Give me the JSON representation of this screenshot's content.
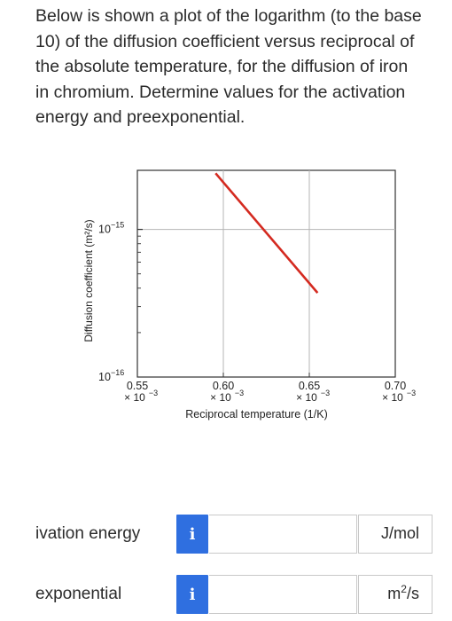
{
  "question": {
    "text": "Below is shown a plot of the logarithm (to the base 10) of the diffusion coefficient versus reciprocal of the absolute temperature, for the diffusion of iron in chromium. Determine values for the activation energy and preexponential."
  },
  "chart_data": {
    "type": "line",
    "xlabel": "Reciprocal temperature (1/K)",
    "ylabel": "Diffusion coefficient (m²/s)",
    "xlim": [
      0.55,
      0.7
    ],
    "ylim_log10": [
      -16,
      -14.6
    ],
    "y_scale": "log",
    "grid": true,
    "xticks": [
      {
        "value": 0.55,
        "label": "0.55",
        "mult": "× 10",
        "exp": "−3"
      },
      {
        "value": 0.6,
        "label": "0.60",
        "mult": "× 10",
        "exp": "−3"
      },
      {
        "value": 0.65,
        "label": "0.65",
        "mult": "× 10",
        "exp": "−3"
      },
      {
        "value": 0.7,
        "label": "0.70",
        "mult": "× 10",
        "exp": "−3"
      }
    ],
    "yticks": [
      {
        "log10": -15,
        "base": "10",
        "exp": "−15"
      },
      {
        "log10": -16,
        "base": "10",
        "exp": "−16"
      }
    ],
    "series": [
      {
        "color": "#d42a20",
        "x": [
          0.5955,
          0.6548
        ],
        "log10_y": [
          -14.62,
          -15.43
        ]
      }
    ]
  },
  "answers": [
    {
      "label": "ivation energy",
      "value": "",
      "unit": "J/mol",
      "unit_exp": ""
    },
    {
      "label": "exponential",
      "value": "",
      "unit": "m",
      "unit_exp": "2",
      "unit_suffix": "/s"
    }
  ],
  "info_icon_glyph": "i",
  "accent_color": "#2f6fe0"
}
